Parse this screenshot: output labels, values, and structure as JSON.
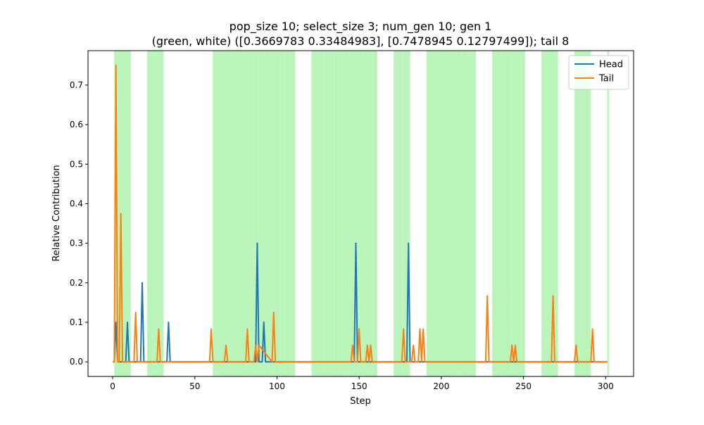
{
  "chart_data": {
    "type": "line",
    "title_line1": "pop_size 10; select_size 3; num_gen 10; gen 1",
    "title_line2": "(green, white) ([0.3669783  0.33484983], [0.7478945  0.12797499]); tail 8",
    "xlabel": "Step",
    "ylabel": "Relative Contribution",
    "xlim": [
      -15,
      317
    ],
    "ylim": [
      -0.037,
      0.787
    ],
    "xticks": [
      0,
      50,
      100,
      150,
      200,
      250,
      300
    ],
    "yticks": [
      0.0,
      0.1,
      0.2,
      0.3,
      0.4,
      0.5,
      0.6,
      0.7
    ],
    "ytick_labels": [
      "0.0",
      "0.1",
      "0.2",
      "0.3",
      "0.4",
      "0.5",
      "0.6",
      "0.7"
    ],
    "grid": false,
    "legend_placement": "top-right",
    "shaded_color": "#90ee90",
    "shaded_regions": [
      [
        1,
        11
      ],
      [
        21,
        31
      ],
      [
        61,
        111
      ],
      [
        121,
        161
      ],
      [
        171,
        181
      ],
      [
        191,
        221
      ],
      [
        231,
        251
      ],
      [
        261,
        271
      ],
      [
        281,
        291
      ],
      [
        301,
        302
      ]
    ],
    "series": [
      {
        "name": "Head",
        "color": "#1f77b4",
        "x": [
          0,
          1,
          2,
          3,
          8,
          9,
          10,
          17,
          18,
          19,
          33,
          34,
          35,
          87,
          88,
          89,
          91,
          92,
          93,
          147,
          148,
          149,
          179,
          180,
          181,
          301
        ],
        "y": [
          0,
          0,
          0.1,
          0,
          0,
          0.1,
          0,
          0,
          0.2,
          0,
          0,
          0.1,
          0,
          0,
          0.3,
          0,
          0,
          0.1,
          0,
          0,
          0.3,
          0,
          0,
          0.3,
          0,
          0
        ]
      },
      {
        "name": "Tail",
        "color": "#ff7f0e",
        "x": [
          0,
          1,
          2,
          3,
          4,
          5,
          6,
          13,
          14,
          15,
          27,
          28,
          29,
          59,
          60,
          61,
          68,
          69,
          70,
          81,
          82,
          83,
          86,
          87,
          88,
          89,
          97,
          98,
          99,
          145,
          146,
          147,
          149,
          150,
          151,
          154,
          155,
          156,
          157,
          158,
          159,
          176,
          177,
          178,
          182,
          183,
          184,
          186,
          187,
          188,
          189,
          190,
          191,
          227,
          228,
          229,
          242,
          243,
          244,
          245,
          246,
          267,
          268,
          269,
          281,
          282,
          283,
          291,
          292,
          293,
          301
        ],
        "y": [
          0,
          0,
          0.75,
          0,
          0,
          0.375,
          0,
          0,
          0.125,
          0,
          0,
          0.083,
          0,
          0,
          0.083,
          0,
          0,
          0.042,
          0,
          0,
          0.083,
          0,
          0,
          0.042,
          0,
          0.042,
          0,
          0.125,
          0,
          0,
          0.042,
          0,
          0,
          0.083,
          0,
          0,
          0.042,
          0,
          0.042,
          0,
          0,
          0,
          0.083,
          0,
          0,
          0.042,
          0,
          0,
          0.083,
          0,
          0.083,
          0,
          0,
          0,
          0.167,
          0,
          0,
          0.042,
          0,
          0.042,
          0,
          0,
          0.167,
          0,
          0,
          0.042,
          0,
          0,
          0.083,
          0,
          0
        ]
      }
    ]
  }
}
